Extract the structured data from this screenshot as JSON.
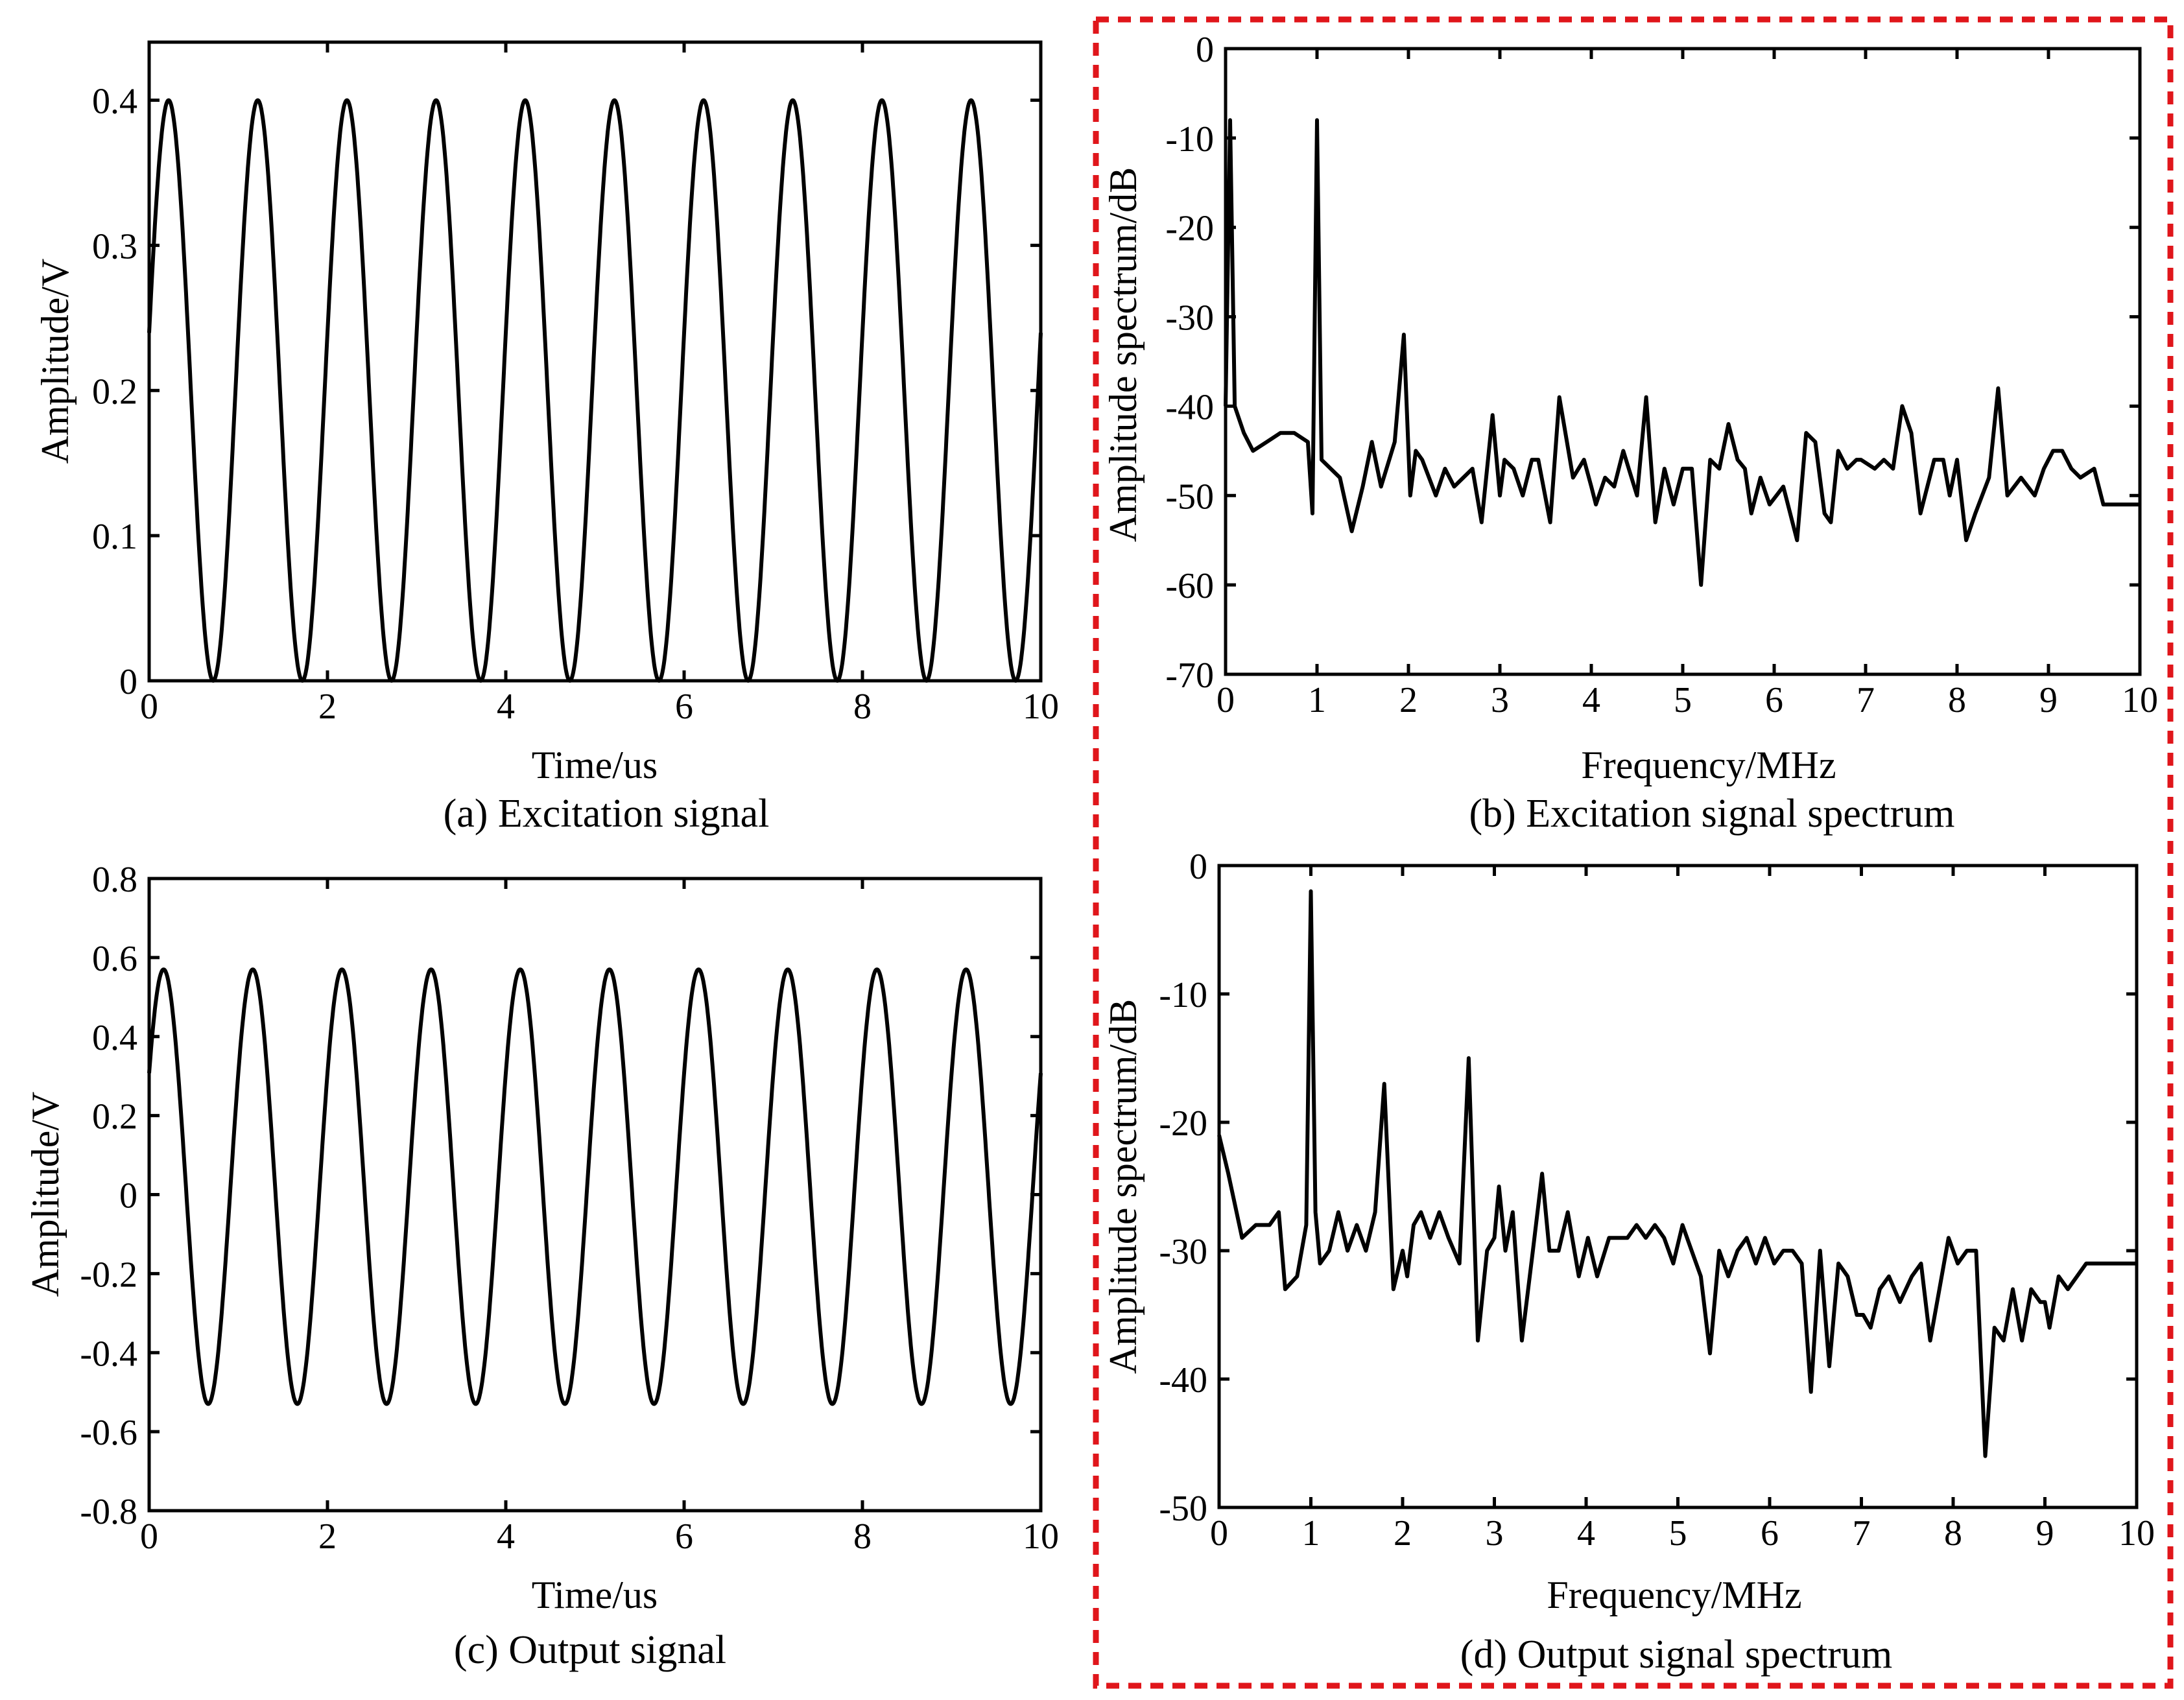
{
  "chart_data": [
    {
      "id": "a",
      "type": "line",
      "signal": "sine",
      "caption": "(a) Excitation signal",
      "xlabel": "Time/us",
      "ylabel": "Amplitude/V",
      "xlim": [
        0,
        10
      ],
      "ylim": [
        0,
        0.44
      ],
      "xticks": [
        0,
        2,
        4,
        6,
        8,
        10
      ],
      "xtick_labels": [
        "0",
        "2",
        "4",
        "6",
        "8",
        "10"
      ],
      "yticks": [
        0,
        0.1,
        0.2,
        0.3,
        0.4
      ],
      "ytick_labels": [
        "0",
        "0.1",
        "0.2",
        "0.3",
        "0.4"
      ],
      "series": [
        {
          "name": "excitation",
          "frequency_MHz": 1.0,
          "offset_V": 0.2,
          "amplitude_V": 0.2,
          "phase_rad": 0.2
        }
      ]
    },
    {
      "id": "b",
      "type": "line",
      "caption": "(b) Excitation signal spectrum",
      "xlabel": "Frequency/MHz",
      "ylabel": "Amplitude spectrum/dB",
      "xlim": [
        0,
        10
      ],
      "ylim": [
        -70,
        0
      ],
      "xticks": [
        0,
        1,
        2,
        3,
        4,
        5,
        6,
        7,
        8,
        9,
        10
      ],
      "xtick_labels": [
        "0",
        "1",
        "2",
        "3",
        "4",
        "5",
        "6",
        "7",
        "8",
        "9",
        "10"
      ],
      "yticks": [
        0,
        -10,
        -20,
        -30,
        -40,
        -50,
        -60,
        -70
      ],
      "ytick_labels": [
        "0",
        "-10",
        "-20",
        "-30",
        "-40",
        "-50",
        "-60",
        "-70"
      ],
      "series": [
        {
          "name": "excitation spectrum",
          "x": [
            0,
            0.05,
            0.1,
            0.2,
            0.3,
            0.45,
            0.6,
            0.75,
            0.9,
            0.95,
            1.0,
            1.05,
            1.25,
            1.38,
            1.5,
            1.6,
            1.7,
            1.85,
            1.95,
            2.02,
            2.08,
            2.15,
            2.3,
            2.4,
            2.5,
            2.6,
            2.7,
            2.8,
            2.92,
            3.0,
            3.05,
            3.15,
            3.25,
            3.35,
            3.42,
            3.55,
            3.65,
            3.8,
            3.92,
            4.0,
            4.05,
            4.15,
            4.25,
            4.35,
            4.5,
            4.6,
            4.7,
            4.8,
            4.9,
            5.0,
            5.1,
            5.2,
            5.3,
            5.4,
            5.5,
            5.6,
            5.68,
            5.75,
            5.85,
            5.95,
            6.1,
            6.25,
            6.35,
            6.45,
            6.55,
            6.62,
            6.7,
            6.8,
            6.9,
            6.95,
            7.1,
            7.2,
            7.3,
            7.4,
            7.5,
            7.6,
            7.75,
            7.85,
            7.92,
            8.0,
            8.1,
            8.2,
            8.35,
            8.45,
            8.55,
            8.7,
            8.85,
            8.95,
            9.05,
            9.15,
            9.25,
            9.35,
            9.5,
            9.6,
            9.7,
            9.8,
            9.95,
            10.0
          ],
          "values": [
            -40,
            -8,
            -40,
            -43,
            -45,
            -44,
            -43,
            -43,
            -44,
            -52,
            -8,
            -46,
            -48,
            -54,
            -49,
            -44,
            -49,
            -44,
            -32,
            -50,
            -45,
            -46,
            -50,
            -47,
            -49,
            -48,
            -47,
            -53,
            -41,
            -50,
            -46,
            -47,
            -50,
            -46,
            -46,
            -53,
            -39,
            -48,
            -46,
            -49,
            -51,
            -48,
            -49,
            -45,
            -50,
            -39,
            -53,
            -47,
            -51,
            -47,
            -47,
            -60,
            -46,
            -47,
            -42,
            -46,
            -47,
            -52,
            -48,
            -51,
            -49,
            -55,
            -43,
            -44,
            -52,
            -53,
            -45,
            -47,
            -46,
            -46,
            -47,
            -46,
            -47,
            -40,
            -43,
            -52,
            -46,
            -46,
            -50,
            -46,
            -55,
            -52,
            -48,
            -38,
            -50,
            -48,
            -50,
            -47,
            -45,
            -45,
            -47,
            -48,
            -47,
            -51,
            -51,
            -51,
            -51,
            -51
          ]
        }
      ]
    },
    {
      "id": "c",
      "type": "line",
      "signal": "sine",
      "caption": "(c) Output signal",
      "xlabel": "Time/us",
      "ylabel": "Amplitude/V",
      "xlim": [
        0,
        10
      ],
      "ylim": [
        -0.8,
        0.8
      ],
      "xticks": [
        0,
        2,
        4,
        6,
        8,
        10
      ],
      "xtick_labels": [
        "0",
        "2",
        "4",
        "6",
        "8",
        "10"
      ],
      "yticks": [
        0.8,
        0.6,
        0.4,
        0.2,
        0,
        -0.2,
        -0.4,
        -0.6,
        -0.8
      ],
      "ytick_labels": [
        "0.8",
        "0.6",
        "0.4",
        "0.2",
        "0",
        "-0.2",
        "-0.4",
        "-0.6",
        "-0.8"
      ],
      "series": [
        {
          "name": "output",
          "frequency_MHz": 1.0,
          "offset_V": 0.02,
          "amplitude_V": 0.55,
          "phase_rad": 0.55
        }
      ]
    },
    {
      "id": "d",
      "type": "line",
      "caption": "(d) Output signal spectrum",
      "xlabel": "Frequency/MHz",
      "ylabel": "Amplitude spectrum/dB",
      "xlim": [
        0,
        10
      ],
      "ylim": [
        -50,
        0
      ],
      "xticks": [
        0,
        1,
        2,
        3,
        4,
        5,
        6,
        7,
        8,
        9,
        10
      ],
      "xtick_labels": [
        "0",
        "1",
        "2",
        "3",
        "4",
        "5",
        "6",
        "7",
        "8",
        "9",
        "10"
      ],
      "yticks": [
        0,
        -10,
        -20,
        -30,
        -40,
        -50
      ],
      "ytick_labels": [
        "0",
        "-10",
        "-20",
        "-30",
        "-40",
        "-50"
      ],
      "series": [
        {
          "name": "output spectrum",
          "x": [
            0,
            0.1,
            0.25,
            0.4,
            0.55,
            0.65,
            0.72,
            0.85,
            0.95,
            1.0,
            1.05,
            1.1,
            1.2,
            1.3,
            1.4,
            1.5,
            1.6,
            1.7,
            1.8,
            1.9,
            2.0,
            2.05,
            2.12,
            2.2,
            2.3,
            2.4,
            2.5,
            2.62,
            2.72,
            2.82,
            2.92,
            3.0,
            3.05,
            3.12,
            3.2,
            3.3,
            3.42,
            3.52,
            3.6,
            3.7,
            3.8,
            3.92,
            4.02,
            4.12,
            4.25,
            4.35,
            4.45,
            4.55,
            4.65,
            4.75,
            4.85,
            4.95,
            5.05,
            5.15,
            5.25,
            5.35,
            5.45,
            5.55,
            5.65,
            5.75,
            5.85,
            5.95,
            6.05,
            6.15,
            6.25,
            6.35,
            6.45,
            6.55,
            6.65,
            6.75,
            6.85,
            6.95,
            7.02,
            7.1,
            7.2,
            7.3,
            7.42,
            7.55,
            7.65,
            7.75,
            7.85,
            7.95,
            8.05,
            8.15,
            8.25,
            8.35,
            8.45,
            8.55,
            8.65,
            8.75,
            8.85,
            8.95,
            9.0,
            9.05,
            9.15,
            9.25,
            9.35,
            9.45,
            9.55,
            9.65,
            9.75,
            9.85,
            9.95,
            10.0
          ],
          "values": [
            -21,
            -24,
            -29,
            -28,
            -28,
            -27,
            -33,
            -32,
            -28,
            -2,
            -27,
            -31,
            -30,
            -27,
            -30,
            -28,
            -30,
            -27,
            -17,
            -33,
            -30,
            -32,
            -28,
            -27,
            -29,
            -27,
            -29,
            -31,
            -15,
            -37,
            -30,
            -29,
            -25,
            -30,
            -27,
            -37,
            -30,
            -24,
            -30,
            -30,
            -27,
            -32,
            -29,
            -32,
            -29,
            -29,
            -29,
            -28,
            -29,
            -28,
            -29,
            -31,
            -28,
            -30,
            -32,
            -38,
            -30,
            -32,
            -30,
            -29,
            -31,
            -29,
            -31,
            -30,
            -30,
            -31,
            -41,
            -30,
            -39,
            -31,
            -32,
            -35,
            -35,
            -36,
            -33,
            -32,
            -34,
            -32,
            -31,
            -37,
            -33,
            -29,
            -31,
            -30,
            -30,
            -46,
            -36,
            -37,
            -33,
            -37,
            -33,
            -34,
            -34,
            -36,
            -32,
            -33,
            -32,
            -31,
            -31,
            -31,
            -31,
            -31,
            -31,
            -31
          ]
        }
      ]
    }
  ],
  "highlight": {
    "color": "#e0161b"
  }
}
